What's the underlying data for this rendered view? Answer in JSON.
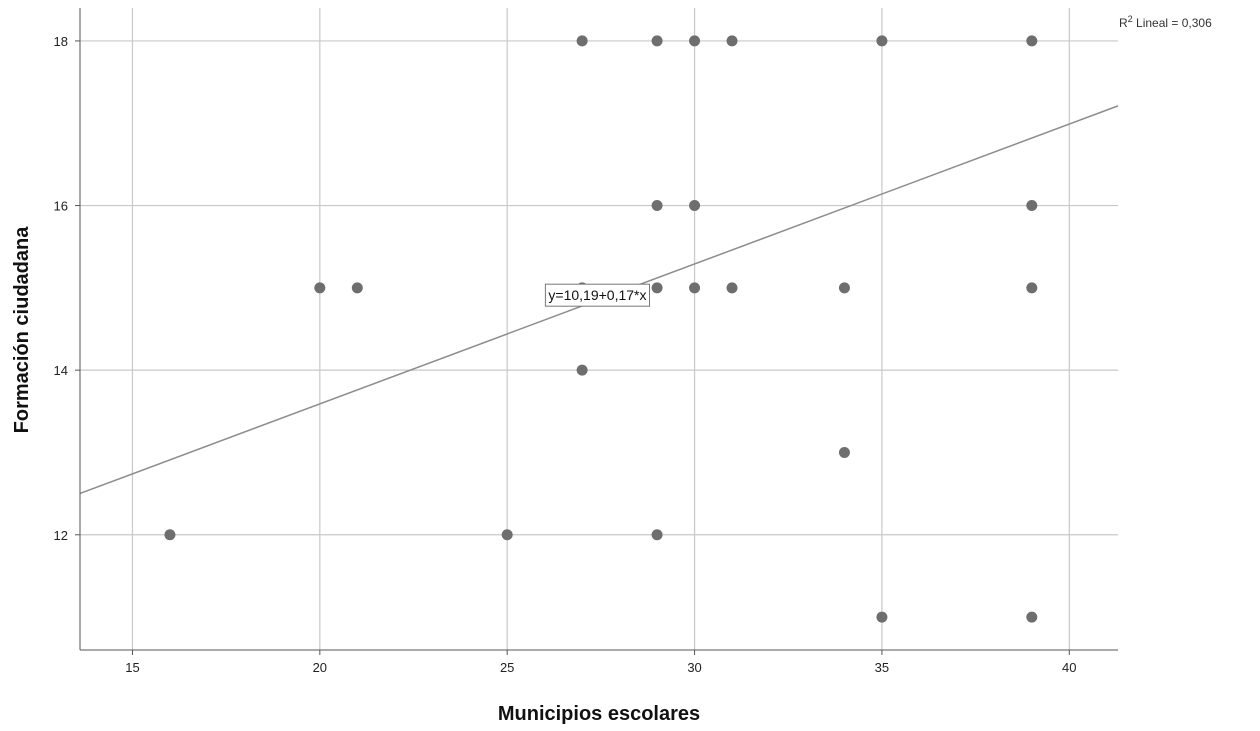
{
  "chart_data": {
    "type": "scatter",
    "title": "",
    "xlabel": "Municipios escolares",
    "ylabel": "Formación ciudadana",
    "xlim": [
      13.6,
      41.3
    ],
    "ylim": [
      10.6,
      18.4
    ],
    "x_ticks": [
      15,
      20,
      25,
      30,
      35,
      40
    ],
    "y_ticks": [
      12,
      14,
      16,
      18
    ],
    "grid": true,
    "point_color": "#6e6e6e",
    "line_color": "#8c8c8c",
    "grid_color": "#c8c8c8",
    "points": [
      {
        "x": 16,
        "y": 12
      },
      {
        "x": 20,
        "y": 15
      },
      {
        "x": 21,
        "y": 15
      },
      {
        "x": 25,
        "y": 12
      },
      {
        "x": 27,
        "y": 18
      },
      {
        "x": 27,
        "y": 15
      },
      {
        "x": 27,
        "y": 14
      },
      {
        "x": 29,
        "y": 18
      },
      {
        "x": 29,
        "y": 16
      },
      {
        "x": 29,
        "y": 15
      },
      {
        "x": 29,
        "y": 12
      },
      {
        "x": 30,
        "y": 18
      },
      {
        "x": 30,
        "y": 16
      },
      {
        "x": 30,
        "y": 15
      },
      {
        "x": 31,
        "y": 18
      },
      {
        "x": 31,
        "y": 15
      },
      {
        "x": 34,
        "y": 15
      },
      {
        "x": 34,
        "y": 13
      },
      {
        "x": 35,
        "y": 18
      },
      {
        "x": 35,
        "y": 11
      },
      {
        "x": 39,
        "y": 18
      },
      {
        "x": 39,
        "y": 16
      },
      {
        "x": 39,
        "y": 15
      },
      {
        "x": 39,
        "y": 11
      }
    ],
    "fit_line": {
      "intercept": 10.19,
      "slope": 0.17,
      "equation_label": "y=10,19+0,17*x",
      "r2_prefix": "R",
      "r2_sup": "2",
      "r2_text": " Lineal = 0,306"
    }
  }
}
